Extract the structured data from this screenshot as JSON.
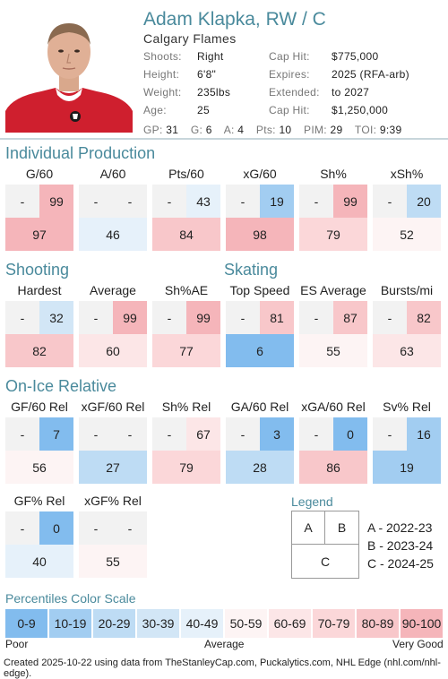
{
  "player": {
    "name": "Adam Klapka, RW / C",
    "team": "Calgary Flames",
    "left_info": [
      {
        "label": "Shoots:",
        "value": "Right"
      },
      {
        "label": "Height:",
        "value": "6'8\""
      },
      {
        "label": "Weight:",
        "value": "235lbs"
      },
      {
        "label": "Age:",
        "value": "25"
      }
    ],
    "right_info": [
      {
        "label": "Cap Hit:",
        "value": "$775,000"
      },
      {
        "label": "Expires:",
        "value": "2025 (RFA-arb)"
      },
      {
        "label": "Extended:",
        "value": "to 2027"
      },
      {
        "label": "Cap Hit:",
        "value": "$1,250,000"
      }
    ],
    "statline": [
      {
        "label": "GP:",
        "value": "31"
      },
      {
        "label": "G:",
        "value": "6"
      },
      {
        "label": "A:",
        "value": "4"
      },
      {
        "label": "Pts:",
        "value": "10"
      },
      {
        "label": "PIM:",
        "value": "29"
      },
      {
        "label": "TOI:",
        "value": "9:39"
      }
    ]
  },
  "sections": {
    "individual": "Individual Production",
    "shooting": "Shooting",
    "skating": "Skating",
    "onice": "On-Ice Relative"
  },
  "metrics": [
    {
      "name": "G/60",
      "a": "-",
      "b": "99",
      "c": "97"
    },
    {
      "name": "A/60",
      "a": "-",
      "b": "-",
      "c": "46"
    },
    {
      "name": "Pts/60",
      "a": "-",
      "b": "43",
      "c": "84"
    },
    {
      "name": "xG/60",
      "a": "-",
      "b": "19",
      "c": "98"
    },
    {
      "name": "Sh%",
      "a": "-",
      "b": "99",
      "c": "79"
    },
    {
      "name": "xSh%",
      "a": "-",
      "b": "20",
      "c": "52"
    },
    {
      "name": "Hardest",
      "a": "-",
      "b": "32",
      "c": "82"
    },
    {
      "name": "Average",
      "a": "-",
      "b": "99",
      "c": "60"
    },
    {
      "name": "Sh%AE",
      "a": "-",
      "b": "99",
      "c": "77"
    },
    {
      "name": "Top Speed",
      "a": "-",
      "b": "81",
      "c": "6"
    },
    {
      "name": "ES Average",
      "a": "-",
      "b": "87",
      "c": "55"
    },
    {
      "name": "Bursts/mi",
      "a": "-",
      "b": "82",
      "c": "63"
    },
    {
      "name": "GF/60 Rel",
      "a": "-",
      "b": "7",
      "c": "56"
    },
    {
      "name": "xGF/60 Rel",
      "a": "-",
      "b": "-",
      "c": "27"
    },
    {
      "name": "Sh% Rel",
      "a": "-",
      "b": "67",
      "c": "79"
    },
    {
      "name": "GA/60 Rel",
      "a": "-",
      "b": "3",
      "c": "28"
    },
    {
      "name": "xGA/60 Rel",
      "a": "-",
      "b": "0",
      "c": "86"
    },
    {
      "name": "Sv% Rel",
      "a": "-",
      "b": "16",
      "c": "19"
    },
    {
      "name": "GF% Rel",
      "a": "-",
      "b": "0",
      "c": "40"
    },
    {
      "name": "xGF% Rel",
      "a": "-",
      "b": "-",
      "c": "55"
    }
  ],
  "legend": {
    "title": "Legend",
    "box_a": "A",
    "box_b": "B",
    "box_c": "C",
    "lines": [
      "A - 2022-23",
      "B - 2023-24",
      "C - 2024-25"
    ]
  },
  "scale": {
    "title": "Percentiles Color Scale",
    "labels": [
      "0-9",
      "10-19",
      "20-29",
      "30-39",
      "40-49",
      "50-59",
      "60-69",
      "70-79",
      "80-89",
      "90-100"
    ],
    "colors": [
      "#82bcee",
      "#a2cdf1",
      "#bedcf4",
      "#d2e6f6",
      "#e6f1fa",
      "#fdf4f4",
      "#fce6e7",
      "#fbd7d9",
      "#f8c7ca",
      "#f5b5ba"
    ],
    "poor": "Poor",
    "average": "Average",
    "good": "Very Good"
  },
  "footer": "Created 2025-10-22 using data from TheStanleyCap.com, Puckalytics.com, NHL Edge (nhl.com/nhl-edge)."
}
